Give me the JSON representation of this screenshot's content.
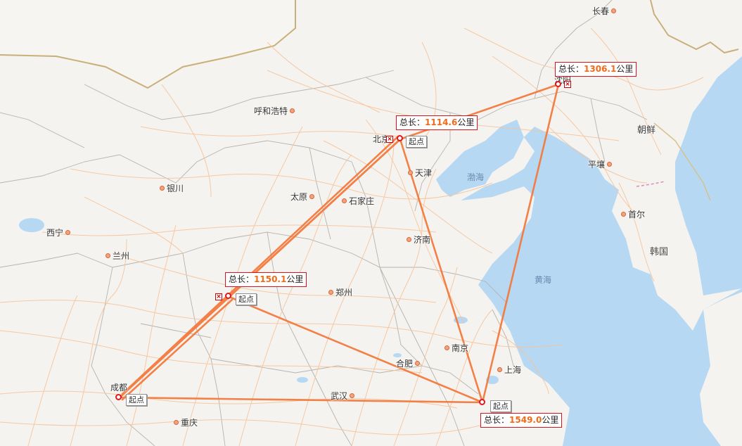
{
  "map": {
    "cities": [
      {
        "id": "changchun",
        "name": "长春"
      },
      {
        "id": "huhehaote",
        "name": "呼和浩特"
      },
      {
        "id": "beijing",
        "name": "北京"
      },
      {
        "id": "tianjin",
        "name": "天津"
      },
      {
        "id": "yinchuan",
        "name": "银川"
      },
      {
        "id": "taiyuan",
        "name": "太原"
      },
      {
        "id": "shijiazhuang",
        "name": "石家庄"
      },
      {
        "id": "xining",
        "name": "西宁"
      },
      {
        "id": "lanzhou",
        "name": "兰州"
      },
      {
        "id": "jinan",
        "name": "济南"
      },
      {
        "id": "zhengzhou",
        "name": "郑州"
      },
      {
        "id": "nanjing",
        "name": "南京"
      },
      {
        "id": "hefei",
        "name": "合肥"
      },
      {
        "id": "shanghai",
        "name": "上海"
      },
      {
        "id": "wuhan",
        "name": "武汉"
      },
      {
        "id": "chengdu",
        "name": "成都"
      },
      {
        "id": "chongqing",
        "name": "重庆"
      },
      {
        "id": "shenyang",
        "name": "沈阳"
      },
      {
        "id": "pyongyang",
        "name": "平壤"
      },
      {
        "id": "seoul",
        "name": "首尔"
      }
    ],
    "seas": {
      "bohai": "渤海",
      "huanghai": "黄海"
    },
    "countries": {
      "chaoxian": "朝鲜",
      "hanguo": "韩国"
    },
    "start_label": "起点",
    "delete_icon": "close-box-icon",
    "route_color": "#f37a3e",
    "stop_color": "#e0171f",
    "totals": [
      {
        "id": "shenyang",
        "prefix": "总长：",
        "value": "1306.1",
        "unit": "公里"
      },
      {
        "id": "beijing",
        "prefix": "总长：",
        "value": "1114.6",
        "unit": "公里"
      },
      {
        "id": "xian",
        "prefix": "总长：",
        "value": "1150.1",
        "unit": "公里"
      },
      {
        "id": "hangzhou",
        "prefix": "总长：",
        "value": "1549.0",
        "unit": "公里"
      }
    ]
  }
}
